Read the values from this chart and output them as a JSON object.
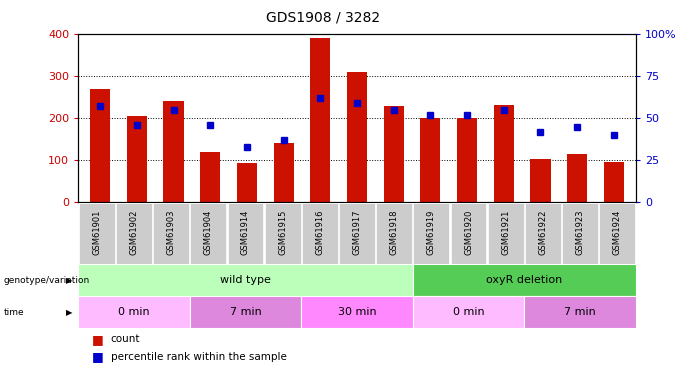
{
  "title": "GDS1908 / 3282",
  "samples": [
    "GSM61901",
    "GSM61902",
    "GSM61903",
    "GSM61904",
    "GSM61914",
    "GSM61915",
    "GSM61916",
    "GSM61917",
    "GSM61918",
    "GSM61919",
    "GSM61920",
    "GSM61921",
    "GSM61922",
    "GSM61923",
    "GSM61924"
  ],
  "counts": [
    270,
    205,
    240,
    120,
    93,
    140,
    390,
    310,
    228,
    200,
    200,
    230,
    103,
    115,
    95
  ],
  "percentiles": [
    57,
    46,
    55,
    46,
    33,
    37,
    62,
    59,
    55,
    52,
    52,
    55,
    42,
    45,
    40
  ],
  "ylim_left": [
    0,
    400
  ],
  "ylim_right": [
    0,
    100
  ],
  "yticks_left": [
    0,
    100,
    200,
    300,
    400
  ],
  "yticks_right": [
    0,
    25,
    50,
    75,
    100
  ],
  "bar_color": "#cc1100",
  "dot_color": "#0000cc",
  "genotype_groups": [
    {
      "label": "wild type",
      "start": 0,
      "end": 9,
      "color": "#bbffbb"
    },
    {
      "label": "oxyR deletion",
      "start": 9,
      "end": 15,
      "color": "#55cc55"
    }
  ],
  "time_groups": [
    {
      "label": "0 min",
      "start": 0,
      "end": 3,
      "color": "#ffbbff"
    },
    {
      "label": "7 min",
      "start": 3,
      "end": 6,
      "color": "#dd88dd"
    },
    {
      "label": "30 min",
      "start": 6,
      "end": 9,
      "color": "#ff88ff"
    },
    {
      "label": "0 min",
      "start": 9,
      "end": 12,
      "color": "#ffbbff"
    },
    {
      "label": "7 min",
      "start": 12,
      "end": 15,
      "color": "#dd88dd"
    }
  ],
  "tick_label_bg": "#cccccc",
  "left_label_color": "#cc0000",
  "right_label_color": "#0000cc"
}
